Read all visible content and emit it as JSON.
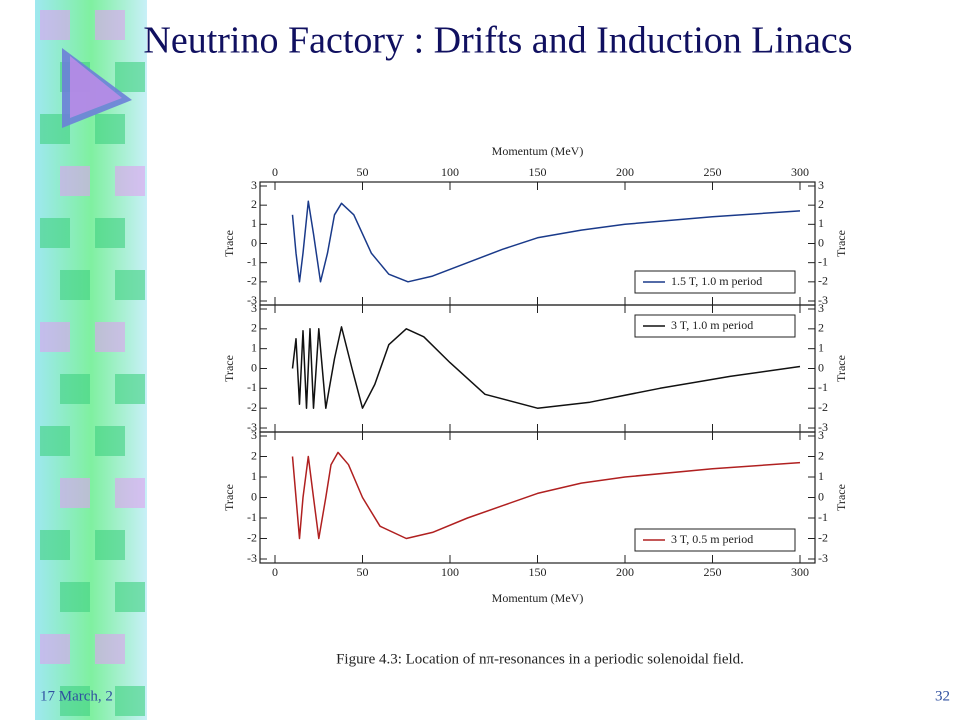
{
  "slide": {
    "title": "Neutrino Factory : Drifts and Induction Linacs",
    "date": "17 March, 2",
    "page": "32"
  },
  "caption": "Figure 4.3: Location of nπ-resonances in a periodic solenoidal field.",
  "chart_data": [
    {
      "type": "line",
      "xlabel": "Momentum (MeV)",
      "ylabel": "Trace",
      "x": [
        10,
        12,
        14,
        16,
        19,
        22,
        26,
        30,
        34,
        38,
        45,
        55,
        65,
        76,
        90,
        110,
        130,
        150,
        175,
        200,
        250,
        300
      ],
      "series": [
        {
          "name": "1.5 T, 1.0 m period",
          "color": "#1a3a8a",
          "values": [
            1.5,
            -0.5,
            -2,
            -0.5,
            2.2,
            0.5,
            -2,
            -0.5,
            1.5,
            2.1,
            1.5,
            -0.5,
            -1.6,
            -2,
            -1.7,
            -1,
            -0.3,
            0.3,
            0.7,
            1.0,
            1.4,
            1.7
          ]
        }
      ],
      "xlim": [
        0,
        300
      ],
      "xticks": [
        0,
        50,
        100,
        150,
        200,
        250,
        300
      ],
      "ylim": [
        -3,
        3
      ],
      "yticks": [
        -3,
        -2,
        -1,
        0,
        1,
        2,
        3
      ],
      "legend": "lower right"
    },
    {
      "type": "line",
      "ylabel": "Trace",
      "x": [
        10,
        12,
        14,
        16,
        18,
        20,
        22,
        25,
        29,
        34,
        38,
        44,
        50,
        57,
        65,
        75,
        85,
        100,
        120,
        150,
        180,
        220,
        260,
        300
      ],
      "series": [
        {
          "name": "3 T, 1.0 m period",
          "color": "#111111",
          "values": [
            0,
            1.5,
            -1.8,
            1.9,
            -2,
            2,
            -2,
            2,
            -2,
            0.5,
            2.1,
            0,
            -2,
            -0.8,
            1.2,
            2,
            1.6,
            0.3,
            -1.3,
            -2,
            -1.7,
            -1,
            -0.4,
            0.1
          ]
        }
      ],
      "xlim": [
        0,
        300
      ],
      "xticks": [
        0,
        50,
        100,
        150,
        200,
        250,
        300
      ],
      "ylim": [
        -3,
        3
      ],
      "yticks": [
        -3,
        -2,
        -1,
        0,
        1,
        2,
        3
      ],
      "legend": "upper right"
    },
    {
      "type": "line",
      "xlabel": "Momentum (MeV)",
      "ylabel": "Trace",
      "x": [
        10,
        12,
        14,
        16,
        19,
        22,
        25,
        29,
        32,
        36,
        42,
        50,
        60,
        75,
        90,
        110,
        130,
        150,
        175,
        200,
        250,
        300
      ],
      "series": [
        {
          "name": "3 T, 0.5 m period",
          "color": "#b02020",
          "values": [
            2,
            0,
            -2,
            0,
            2,
            0,
            -2,
            0,
            1.6,
            2.2,
            1.6,
            0,
            -1.4,
            -2,
            -1.7,
            -1,
            -0.4,
            0.2,
            0.7,
            1.0,
            1.4,
            1.7
          ]
        }
      ],
      "xlim": [
        0,
        300
      ],
      "xticks": [
        0,
        50,
        100,
        150,
        200,
        250,
        300
      ],
      "ylim": [
        -3,
        3
      ],
      "yticks": [
        -3,
        -2,
        -1,
        0,
        1,
        2,
        3
      ],
      "legend": "lower right"
    }
  ]
}
